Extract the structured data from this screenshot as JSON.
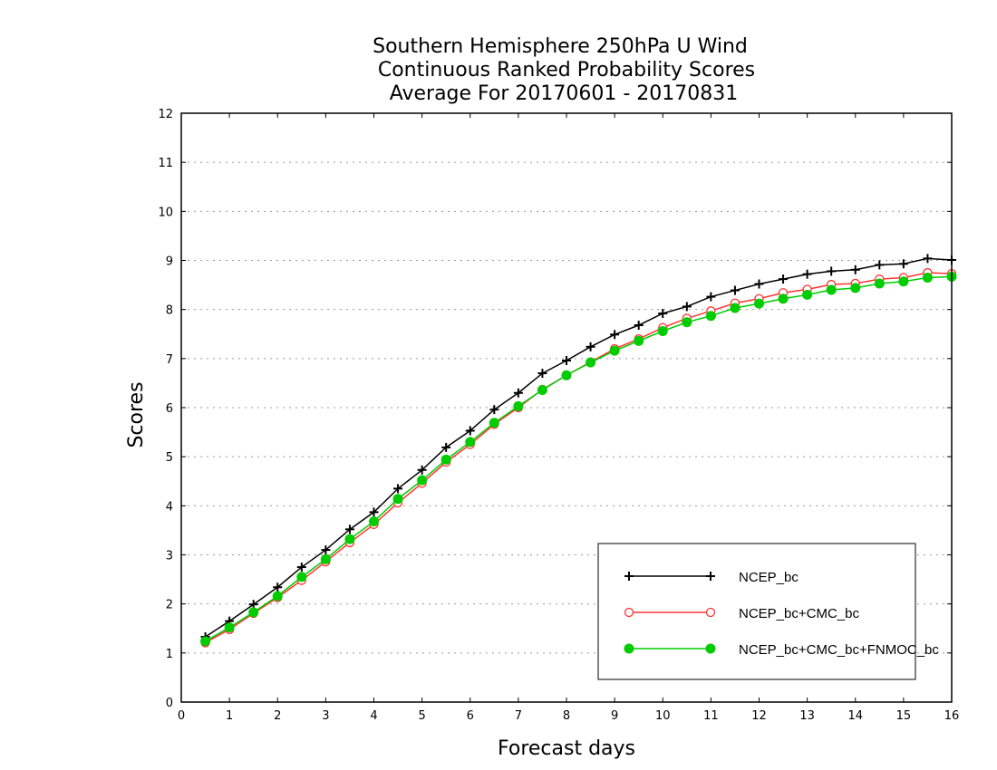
{
  "chart_data": {
    "type": "line",
    "title_lines": [
      "Southern Hemisphere 250hPa U Wind",
      "Continuous Ranked Probability Scores",
      "Average For 20170601 - 20170831"
    ],
    "xlabel": "Forecast days",
    "ylabel": "Scores",
    "xlim": [
      0,
      16
    ],
    "ylim": [
      0,
      12
    ],
    "xticks": [
      "0",
      "1",
      "2",
      "3",
      "4",
      "5",
      "6",
      "7",
      "8",
      "9",
      "10",
      "11",
      "12",
      "13",
      "14",
      "15",
      "16"
    ],
    "yticks": [
      "0",
      "1",
      "2",
      "3",
      "4",
      "5",
      "6",
      "7",
      "8",
      "9",
      "10",
      "11",
      "12"
    ],
    "grid": true,
    "legend_position": "bottom-right",
    "x": [
      0.5,
      1,
      1.5,
      2,
      2.5,
      3,
      3.5,
      4,
      4.5,
      5,
      5.5,
      6,
      6.5,
      7,
      7.5,
      8,
      8.5,
      9,
      9.5,
      10,
      10.5,
      11,
      11.5,
      12,
      12.5,
      13,
      13.5,
      14,
      14.5,
      15,
      15.5,
      16
    ],
    "series": [
      {
        "name": "NCEP_bc",
        "color": "#000000",
        "marker": "plus",
        "values": [
          1.33,
          1.65,
          1.99,
          2.34,
          2.75,
          3.1,
          3.52,
          3.87,
          4.35,
          4.73,
          5.19,
          5.53,
          5.96,
          6.3,
          6.7,
          6.96,
          7.24,
          7.49,
          7.68,
          7.92,
          8.06,
          8.26,
          8.39,
          8.52,
          8.62,
          8.72,
          8.78,
          8.81,
          8.91,
          8.93,
          9.04,
          9.01
        ]
      },
      {
        "name": "NCEP_bc+CMC_bc",
        "color": "#ff3333",
        "marker": "circle-open",
        "values": [
          1.21,
          1.48,
          1.81,
          2.13,
          2.48,
          2.86,
          3.25,
          3.62,
          4.06,
          4.46,
          4.89,
          5.25,
          5.66,
          6.0,
          6.37,
          6.66,
          6.93,
          7.2,
          7.4,
          7.63,
          7.82,
          7.97,
          8.13,
          8.22,
          8.34,
          8.41,
          8.51,
          8.53,
          8.62,
          8.65,
          8.75,
          8.73
        ]
      },
      {
        "name": "NCEP_bc+CMC_bc+FNMOC_bc",
        "color": "#00cc00",
        "marker": "circle-filled",
        "values": [
          1.24,
          1.52,
          1.83,
          2.16,
          2.55,
          2.91,
          3.32,
          3.68,
          4.14,
          4.52,
          4.94,
          5.3,
          5.69,
          6.03,
          6.36,
          6.66,
          6.92,
          7.16,
          7.36,
          7.56,
          7.74,
          7.87,
          8.03,
          8.12,
          8.22,
          8.3,
          8.4,
          8.44,
          8.53,
          8.57,
          8.65,
          8.67
        ]
      }
    ]
  }
}
